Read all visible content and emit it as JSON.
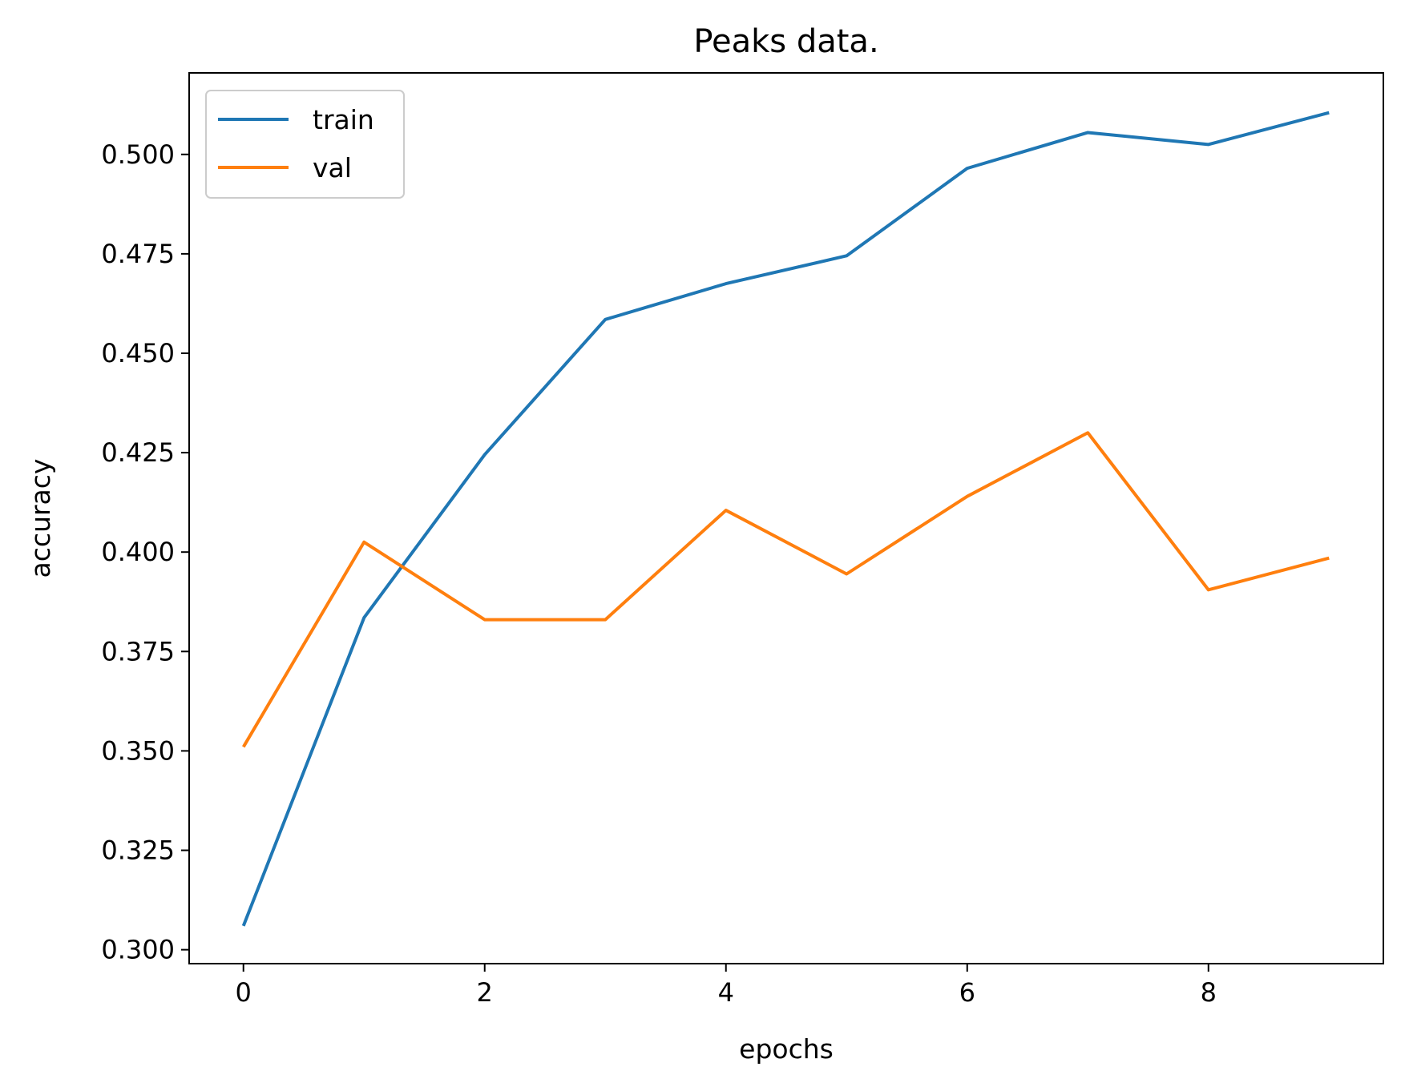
{
  "chart_data": {
    "type": "line",
    "title": "Peaks data.",
    "xlabel": "epochs",
    "ylabel": "accuracy",
    "xlim": [
      -0.45,
      9.45
    ],
    "ylim": [
      0.2965,
      0.5205
    ],
    "xticks": [
      0,
      2,
      4,
      6,
      8
    ],
    "xtick_labels": [
      "0",
      "2",
      "4",
      "6",
      "8"
    ],
    "yticks": [
      0.3,
      0.325,
      0.35,
      0.375,
      0.4,
      0.425,
      0.45,
      0.475,
      0.5
    ],
    "ytick_labels": [
      "0.300",
      "0.325",
      "0.350",
      "0.375",
      "0.400",
      "0.425",
      "0.450",
      "0.475",
      "0.500"
    ],
    "grid": false,
    "legend_position": "top-left",
    "x": [
      0,
      1,
      2,
      3,
      4,
      5,
      6,
      7,
      8,
      9
    ],
    "series": [
      {
        "name": "train",
        "color": "#1f77b4",
        "values": [
          0.306,
          0.3835,
          0.4245,
          0.4585,
          0.4675,
          0.4745,
          0.4965,
          0.5055,
          0.5025,
          0.5105
        ]
      },
      {
        "name": "val",
        "color": "#ff7f0e",
        "values": [
          0.351,
          0.4025,
          0.383,
          0.383,
          0.4105,
          0.3945,
          0.414,
          0.43,
          0.3905,
          0.3985
        ]
      }
    ]
  }
}
